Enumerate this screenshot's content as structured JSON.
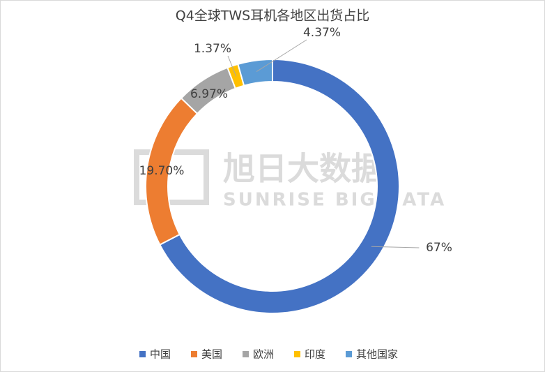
{
  "chart_data": {
    "type": "donut",
    "title": "Q4全球TWS耳机各地区出货占比",
    "categories": [
      "中国",
      "美国",
      "欧洲",
      "印度",
      "其他国家"
    ],
    "values": [
      67,
      19.7,
      6.97,
      1.37,
      4.37
    ],
    "value_labels": [
      "67%",
      "19.70%",
      "6.97%",
      "1.37%",
      "4.37%"
    ],
    "colors": [
      "#4472c4",
      "#ed7d31",
      "#a5a5a5",
      "#ffc000",
      "#5b9bd5"
    ],
    "legend": "bottom"
  },
  "watermark": {
    "title": "旭日大数据",
    "subtitle": "SUNRISE BIG DATA"
  }
}
